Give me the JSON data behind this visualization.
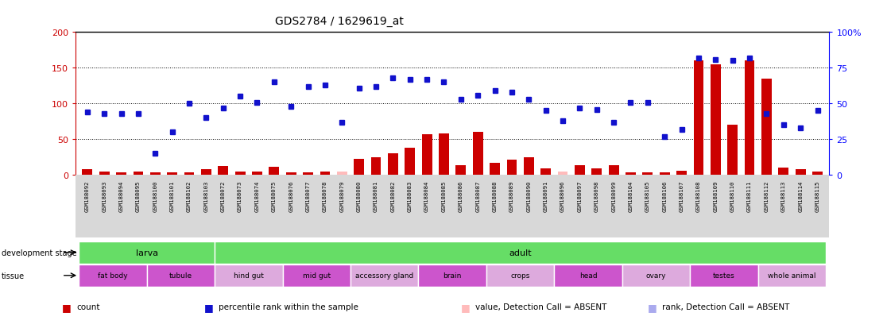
{
  "title": "GDS2784 / 1629619_at",
  "samples": [
    "GSM188092",
    "GSM188093",
    "GSM188094",
    "GSM188095",
    "GSM188100",
    "GSM188101",
    "GSM188102",
    "GSM188103",
    "GSM188072",
    "GSM188073",
    "GSM188074",
    "GSM188075",
    "GSM188076",
    "GSM188077",
    "GSM188078",
    "GSM188079",
    "GSM188080",
    "GSM188081",
    "GSM188082",
    "GSM188083",
    "GSM188084",
    "GSM188085",
    "GSM188086",
    "GSM188087",
    "GSM188088",
    "GSM188089",
    "GSM188090",
    "GSM188091",
    "GSM188096",
    "GSM188097",
    "GSM188098",
    "GSM188099",
    "GSM188104",
    "GSM188105",
    "GSM188106",
    "GSM188107",
    "GSM188108",
    "GSM188109",
    "GSM188110",
    "GSM188111",
    "GSM188112",
    "GSM188113",
    "GSM188114",
    "GSM188115"
  ],
  "count_values": [
    8,
    5,
    4,
    5,
    4,
    4,
    4,
    8,
    13,
    5,
    5,
    12,
    4,
    4,
    5,
    5,
    23,
    25,
    30,
    38,
    57,
    58,
    14,
    60,
    17,
    22,
    25,
    9,
    5,
    14,
    9,
    14,
    4,
    4,
    4,
    6,
    160,
    155,
    70,
    160,
    135,
    10,
    8,
    5
  ],
  "absent_mask_count": [
    false,
    false,
    false,
    false,
    false,
    false,
    false,
    false,
    false,
    false,
    false,
    false,
    false,
    false,
    false,
    true,
    false,
    false,
    false,
    false,
    false,
    false,
    false,
    false,
    false,
    false,
    false,
    false,
    true,
    false,
    false,
    false,
    false,
    false,
    false,
    false,
    false,
    false,
    false,
    false,
    false,
    false,
    false,
    false
  ],
  "rank_values_pct": [
    44,
    43,
    43,
    43,
    15,
    30,
    50,
    40,
    47,
    55,
    51,
    65,
    48,
    62,
    63,
    37,
    61,
    62,
    68,
    67,
    67,
    65,
    53,
    56,
    59,
    58,
    53,
    45,
    38,
    47,
    46,
    37,
    51,
    51,
    27,
    32,
    82,
    81,
    80,
    82,
    43,
    35,
    33,
    45
  ],
  "absent_mask_rank": [
    false,
    false,
    false,
    false,
    false,
    false,
    false,
    false,
    false,
    false,
    false,
    false,
    false,
    false,
    false,
    false,
    false,
    false,
    false,
    false,
    false,
    false,
    false,
    false,
    false,
    false,
    false,
    false,
    false,
    false,
    false,
    false,
    false,
    false,
    false,
    false,
    false,
    false,
    false,
    false,
    false,
    false,
    false,
    false
  ],
  "development_stages": [
    {
      "label": "larva",
      "start": 0,
      "end": 8
    },
    {
      "label": "adult",
      "start": 8,
      "end": 44
    }
  ],
  "tissues": [
    {
      "label": "fat body",
      "start": 0,
      "end": 4,
      "alt": false
    },
    {
      "label": "tubule",
      "start": 4,
      "end": 8,
      "alt": false
    },
    {
      "label": "hind gut",
      "start": 8,
      "end": 12,
      "alt": true
    },
    {
      "label": "mid gut",
      "start": 12,
      "end": 16,
      "alt": false
    },
    {
      "label": "accessory gland",
      "start": 16,
      "end": 20,
      "alt": true
    },
    {
      "label": "brain",
      "start": 20,
      "end": 24,
      "alt": false
    },
    {
      "label": "crops",
      "start": 24,
      "end": 28,
      "alt": true
    },
    {
      "label": "head",
      "start": 28,
      "end": 32,
      "alt": false
    },
    {
      "label": "ovary",
      "start": 32,
      "end": 36,
      "alt": true
    },
    {
      "label": "testes",
      "start": 36,
      "end": 40,
      "alt": false
    },
    {
      "label": "whole animal",
      "start": 40,
      "end": 44,
      "alt": true
    }
  ],
  "color_count_present": "#cc0000",
  "color_count_absent": "#ffbbbb",
  "color_rank_present": "#1111cc",
  "color_rank_absent": "#aaaaee",
  "dev_stage_color": "#66dd66",
  "tissue_color_main": "#cc55cc",
  "tissue_color_alt": "#ddaadd",
  "ylim_left": [
    0,
    200
  ],
  "ylim_right": [
    0,
    100
  ],
  "yticks_left": [
    0,
    50,
    100,
    150,
    200
  ],
  "ytick_labels_left": [
    "0",
    "50",
    "100",
    "150",
    "200"
  ],
  "yticks_right": [
    0,
    25,
    50,
    75,
    100
  ],
  "ytick_labels_right": [
    "0",
    "25",
    "50",
    "75",
    "100%"
  ]
}
